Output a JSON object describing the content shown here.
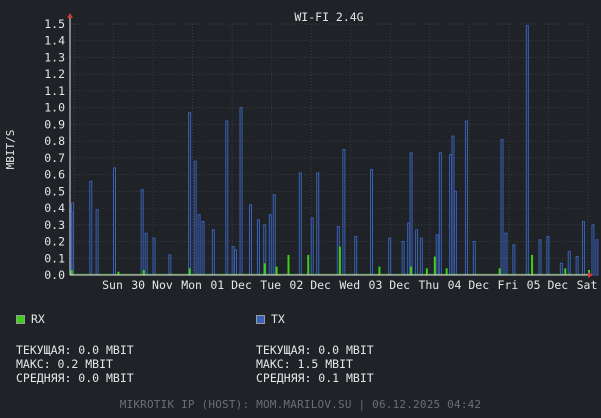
{
  "chart_data": {
    "type": "bar",
    "title": "WI-FI 2.4G",
    "ylabel": "MBIT/S",
    "ylim": [
      0,
      1.5
    ],
    "yticks": [
      "0.0",
      "0.1",
      "0.2",
      "0.3",
      "0.4",
      "0.5",
      "0.6",
      "0.7",
      "0.8",
      "0.9",
      "1.0",
      "1.1",
      "1.2",
      "1.3",
      "1.4",
      "1.5"
    ],
    "xticks": [
      {
        "day": "Sun",
        "date": "30 Nov"
      },
      {
        "day": "Mon",
        "date": "01 Dec"
      },
      {
        "day": "Tue",
        "date": "02 Dec"
      },
      {
        "day": "Wed",
        "date": "03 Dec"
      },
      {
        "day": "Thu",
        "date": "04 Dec"
      },
      {
        "day": "Fri",
        "date": "05 Dec"
      },
      {
        "day": "Sat",
        "date": "06 Dec"
      }
    ],
    "x_start_day_offset": -0.55,
    "x_span_days": 6.55,
    "series": [
      {
        "name": "TX",
        "color": "#3a62b8",
        "points": [
          [
            0.0,
            0.38
          ],
          [
            0.02,
            0.43
          ],
          [
            0.25,
            0.56
          ],
          [
            0.33,
            0.39
          ],
          [
            0.55,
            0.64
          ],
          [
            0.9,
            0.51
          ],
          [
            0.95,
            0.25
          ],
          [
            1.05,
            0.22
          ],
          [
            1.25,
            0.12
          ],
          [
            1.5,
            0.97
          ],
          [
            1.57,
            0.68
          ],
          [
            1.62,
            0.36
          ],
          [
            1.67,
            0.32
          ],
          [
            1.8,
            0.27
          ],
          [
            1.97,
            0.92
          ],
          [
            2.05,
            0.17
          ],
          [
            2.08,
            0.15
          ],
          [
            2.15,
            1.0
          ],
          [
            2.27,
            0.42
          ],
          [
            2.37,
            0.33
          ],
          [
            2.45,
            0.3
          ],
          [
            2.52,
            0.36
          ],
          [
            2.57,
            0.48
          ],
          [
            2.9,
            0.61
          ],
          [
            3.05,
            0.34
          ],
          [
            3.12,
            0.61
          ],
          [
            3.38,
            0.29
          ],
          [
            3.45,
            0.75
          ],
          [
            3.6,
            0.23
          ],
          [
            3.8,
            0.63
          ],
          [
            4.03,
            0.22
          ],
          [
            4.2,
            0.2
          ],
          [
            4.27,
            0.31
          ],
          [
            4.3,
            0.73
          ],
          [
            4.37,
            0.27
          ],
          [
            4.43,
            0.22
          ],
          [
            4.63,
            0.24
          ],
          [
            4.67,
            0.73
          ],
          [
            4.8,
            0.72
          ],
          [
            4.83,
            0.83
          ],
          [
            4.86,
            0.5
          ],
          [
            5.0,
            0.92
          ],
          [
            5.1,
            0.2
          ],
          [
            5.45,
            0.81
          ],
          [
            5.5,
            0.25
          ],
          [
            5.6,
            0.18
          ],
          [
            5.77,
            1.49
          ],
          [
            5.93,
            0.21
          ],
          [
            6.03,
            0.23
          ],
          [
            6.2,
            0.07
          ],
          [
            6.3,
            0.14
          ],
          [
            6.4,
            0.11
          ],
          [
            6.48,
            0.32
          ],
          [
            6.6,
            0.3
          ],
          [
            6.65,
            0.21
          ],
          [
            6.8,
            0.14
          ],
          [
            6.93,
            0.57
          ],
          [
            7.0,
            0.41
          ],
          [
            7.05,
            0.19
          ],
          [
            7.25,
            0.69
          ]
        ]
      },
      {
        "name": "RX",
        "color": "#3ecf1a",
        "points": [
          [
            0.01,
            0.03
          ],
          [
            0.6,
            0.02
          ],
          [
            0.92,
            0.03
          ],
          [
            1.5,
            0.04
          ],
          [
            2.45,
            0.07
          ],
          [
            2.6,
            0.05
          ],
          [
            2.75,
            0.12
          ],
          [
            3.0,
            0.12
          ],
          [
            3.4,
            0.17
          ],
          [
            3.9,
            0.05
          ],
          [
            4.3,
            0.05
          ],
          [
            4.5,
            0.04
          ],
          [
            4.6,
            0.11
          ],
          [
            4.75,
            0.04
          ],
          [
            5.42,
            0.04
          ],
          [
            5.83,
            0.12
          ],
          [
            6.25,
            0.04
          ],
          [
            6.55,
            0.03
          ],
          [
            6.9,
            0.03
          ]
        ]
      }
    ]
  },
  "legend": {
    "rx": {
      "label": "RX",
      "color": "#3ecf1a",
      "current": "ТЕКУЩАЯ: 0.0 MBIT",
      "max": "МАКС: 0.2 MBIT",
      "avg": "СРЕДНЯЯ: 0.0 MBIT"
    },
    "tx": {
      "label": "TX",
      "color": "#3a62b8",
      "current": "ТЕКУЩАЯ: 0.0 MBIT",
      "max": "МАКС: 1.5 MBIT",
      "avg": "СРЕДНЯЯ: 0.1 MBIT"
    }
  },
  "footer": "MIKROTIK IP (HOST): MOM.MARILOV.SU | 06.12.2025 04:42"
}
